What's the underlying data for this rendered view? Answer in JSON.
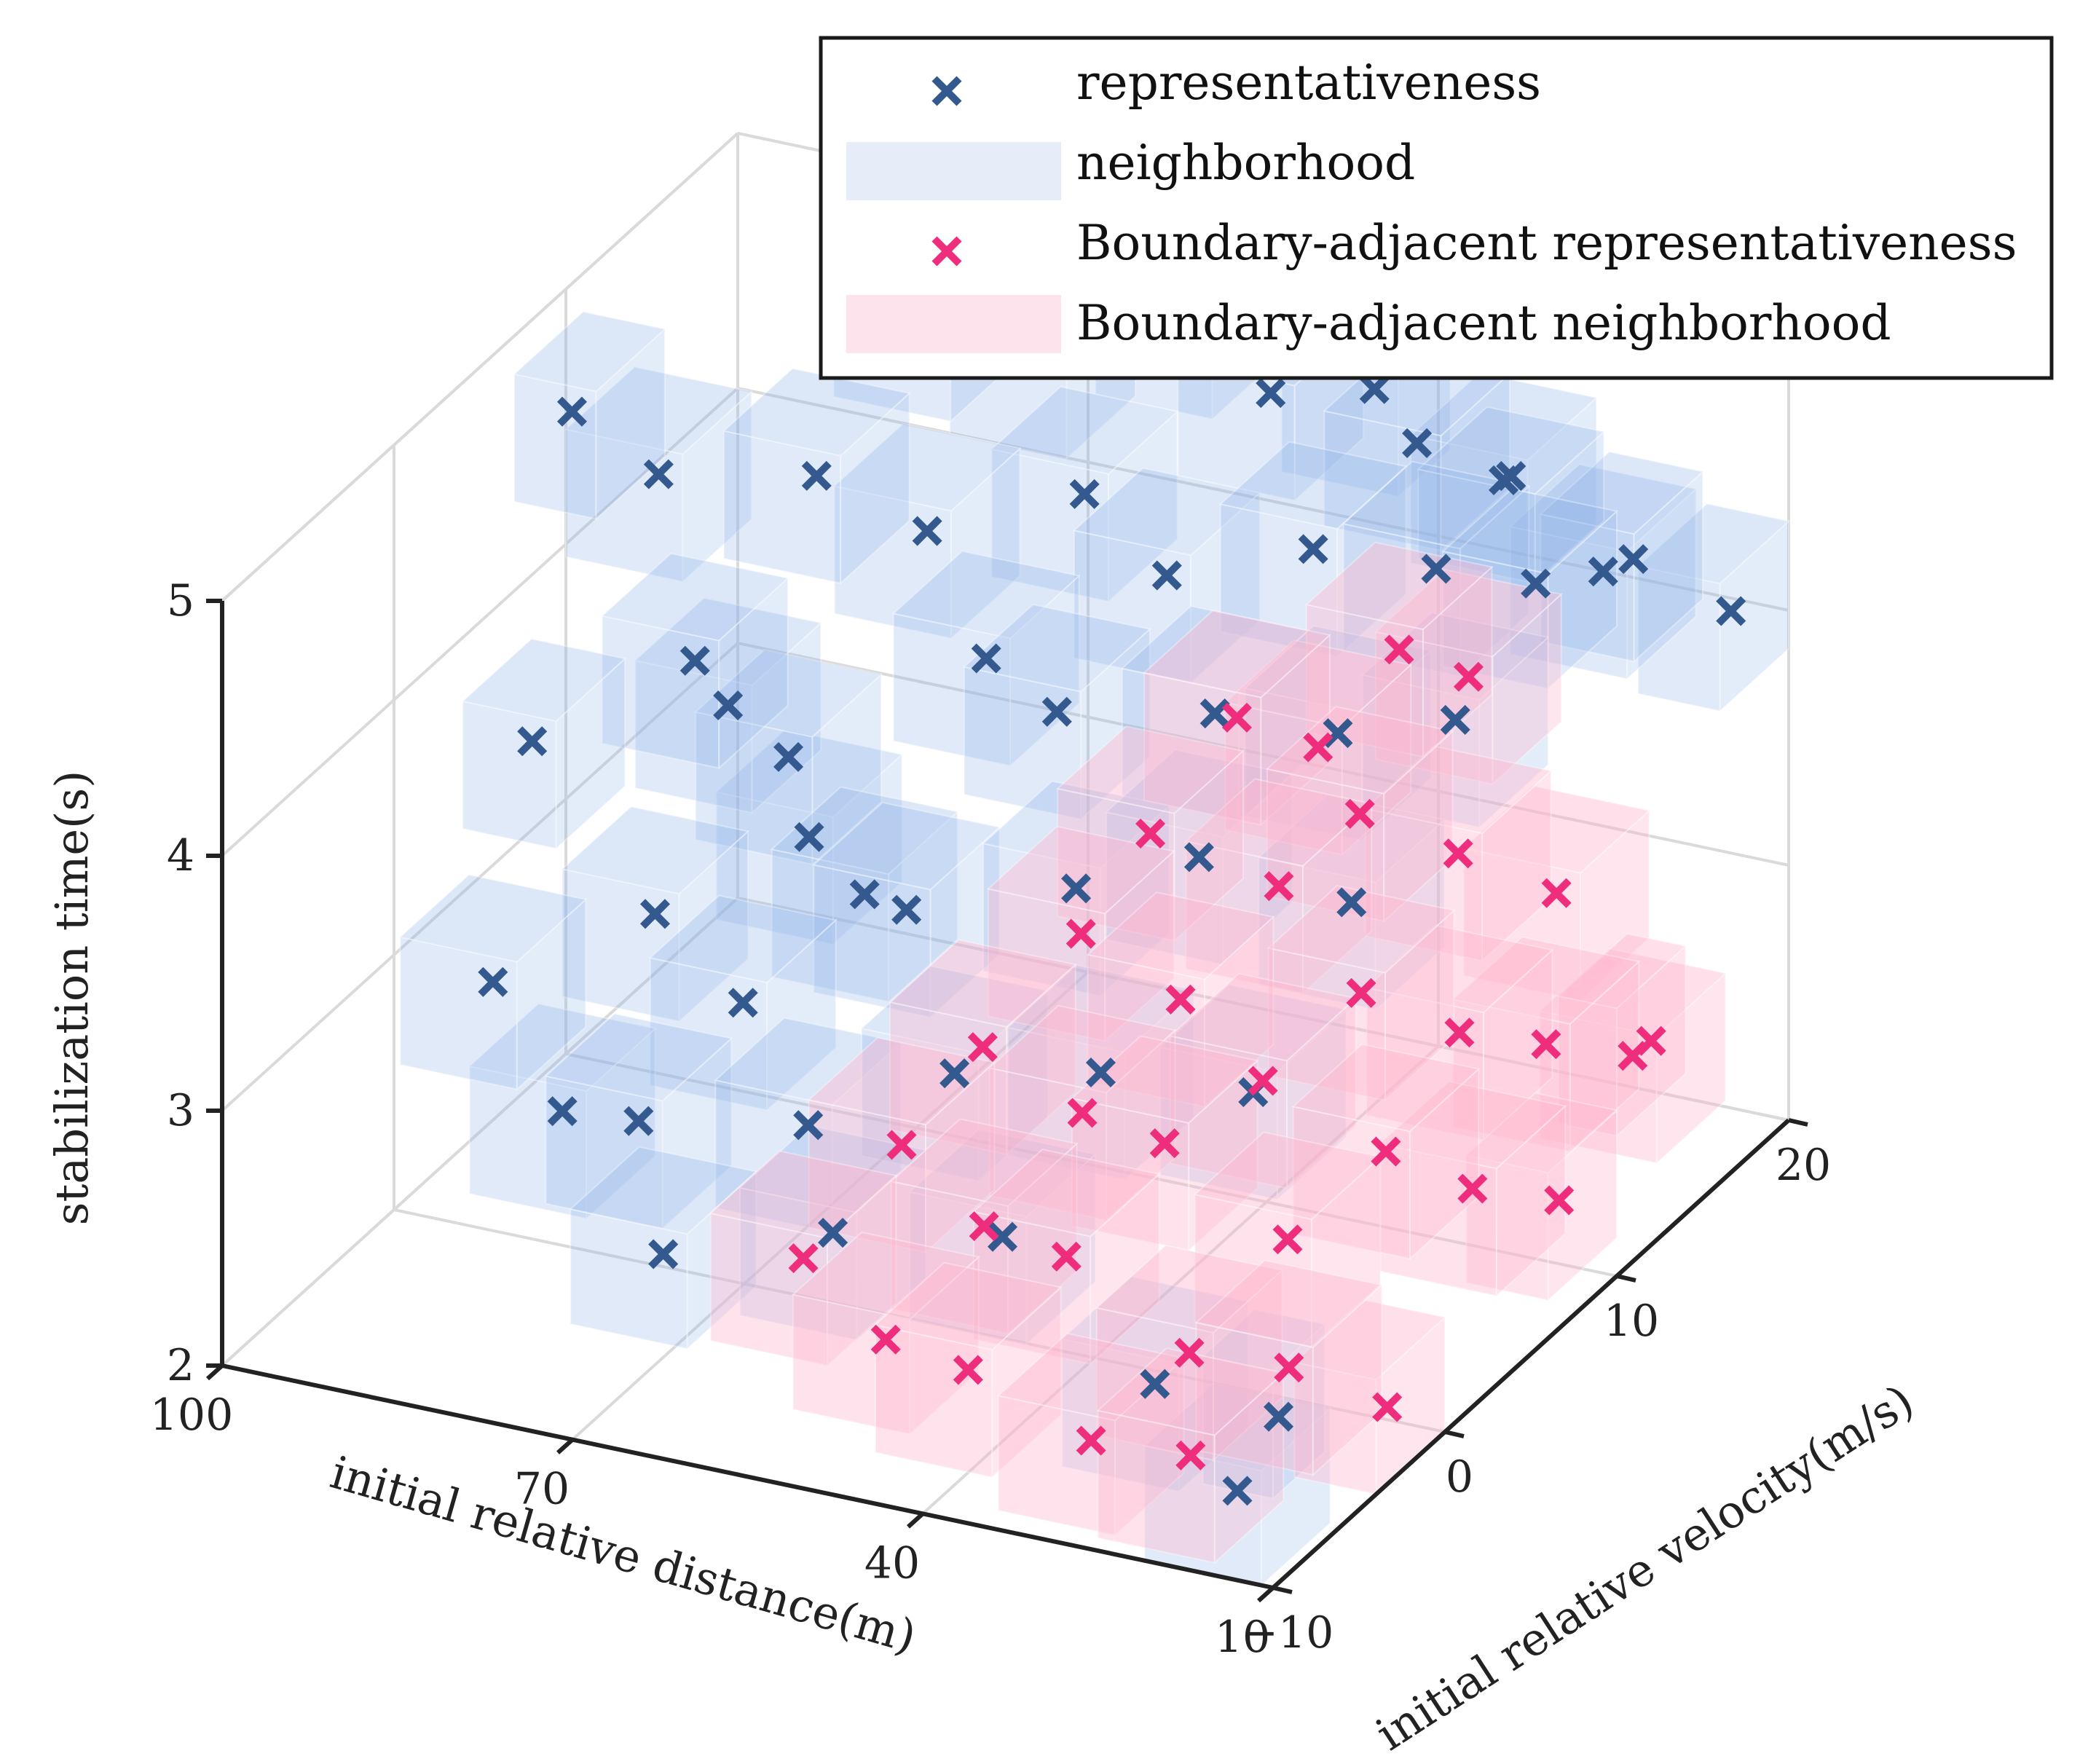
{
  "colors": {
    "representative": "#33598f",
    "neighborhood": "#8fb3e8",
    "neighborhood_legend": "#e6edf8",
    "boundary_representative": "#ee2e7c",
    "boundary_neighborhood": "#ffb6cc",
    "boundary_neighborhood_legend": "#fde4ec",
    "grid": "#dadada",
    "axis": "#222222"
  },
  "legend": {
    "position": "top-right",
    "items": [
      {
        "label": "representativeness",
        "kind": "marker",
        "color_key": "representative"
      },
      {
        "label": "neighborhood",
        "kind": "patch",
        "color_key": "neighborhood_legend"
      },
      {
        "label": "Boundary-adjacent representativeness",
        "kind": "marker",
        "color_key": "boundary_representative"
      },
      {
        "label": "Boundary-adjacent neighborhood",
        "kind": "patch",
        "color_key": "boundary_neighborhood_legend"
      }
    ]
  },
  "chart_data": {
    "type": "scatter",
    "projection": "3d",
    "title": "",
    "xlabel": "initial relative distance(m)",
    "ylabel": "initial relative velocity(m/s)",
    "zlabel": "stabilization time(s)",
    "xlim": [
      10,
      100
    ],
    "ylim": [
      -10,
      20
    ],
    "zlim": [
      2,
      5
    ],
    "xticks": [
      100,
      70,
      40,
      10
    ],
    "xtick_labels": [
      "100",
      "70",
      "40",
      "10"
    ],
    "yticks": [
      -10,
      0,
      10,
      20
    ],
    "ytick_labels": [
      "−10",
      "0",
      "10",
      "20"
    ],
    "zticks": [
      2,
      3,
      4,
      5
    ],
    "ztick_labels": [
      "2",
      "3",
      "4",
      "5"
    ],
    "grid": true,
    "series": [
      {
        "name": "representativeness",
        "marker": "x",
        "color_key": "representative",
        "neighborhood_half_size": [
          5,
          2,
          0.25
        ],
        "points": [
          [
            98,
            9,
            4.6
          ],
          [
            95,
            12,
            4.2
          ],
          [
            92,
            14,
            3.2
          ],
          [
            88,
            16,
            2.6
          ],
          [
            97,
            6,
            3.5
          ],
          [
            90,
            3,
            2.3
          ],
          [
            86,
            8,
            3.8
          ],
          [
            80,
            11,
            4.4
          ],
          [
            75,
            14,
            4.9
          ],
          [
            93,
            1,
            2.9
          ],
          [
            85,
            5,
            3.0
          ],
          [
            78,
            8,
            3.5
          ],
          [
            72,
            12,
            4.2
          ],
          [
            68,
            16,
            4.7
          ],
          [
            82,
            2,
            2.4
          ],
          [
            76,
            4,
            2.8
          ],
          [
            70,
            7,
            3.1
          ],
          [
            64,
            10,
            3.9
          ],
          [
            60,
            13,
            4.4
          ],
          [
            57,
            17,
            4.9
          ],
          [
            74,
            -2,
            2.2
          ],
          [
            66,
            1,
            2.6
          ],
          [
            62,
            4,
            3.3
          ],
          [
            55,
            8,
            3.9
          ],
          [
            50,
            11,
            4.3
          ],
          [
            47,
            15,
            4.8
          ],
          [
            44,
            19,
            4.6
          ],
          [
            58,
            -3,
            2.5
          ],
          [
            52,
            0,
            3.0
          ],
          [
            46,
            3,
            3.6
          ],
          [
            40,
            7,
            4.1
          ],
          [
            36,
            10,
            4.6
          ],
          [
            33,
            14,
            4.8
          ],
          [
            30,
            17,
            4.5
          ],
          [
            42,
            -4,
            2.7
          ],
          [
            38,
            -1,
            3.2
          ],
          [
            34,
            2,
            3.9
          ],
          [
            28,
            6,
            4.2
          ],
          [
            24,
            9,
            4.7
          ],
          [
            22,
            12,
            4.9
          ],
          [
            20,
            16,
            4.3
          ],
          [
            26,
            -6,
            2.4
          ],
          [
            22,
            -3,
            3.4
          ],
          [
            18,
            0,
            4.0
          ],
          [
            15,
            4,
            4.5
          ],
          [
            14,
            8,
            4.8
          ],
          [
            13,
            13,
            4.6
          ],
          [
            12,
            18,
            4.1
          ],
          [
            16,
            -8,
            2.2
          ],
          [
            11,
            -9,
            2.6
          ]
        ]
      },
      {
        "name": "Boundary-adjacent representativeness",
        "marker": "x",
        "color_key": "boundary_representative",
        "neighborhood_half_size": [
          5,
          2,
          0.25
        ],
        "points": [
          [
            62,
            -2,
            2.3
          ],
          [
            58,
            1,
            2.6
          ],
          [
            54,
            3,
            2.9
          ],
          [
            50,
            6,
            3.2
          ],
          [
            47,
            8,
            3.5
          ],
          [
            44,
            11,
            3.8
          ],
          [
            40,
            13,
            3.6
          ],
          [
            36,
            15,
            3.9
          ],
          [
            33,
            17,
            3.7
          ],
          [
            52,
            -4,
            2.2
          ],
          [
            48,
            -1,
            2.5
          ],
          [
            44,
            2,
            2.8
          ],
          [
            40,
            5,
            3.1
          ],
          [
            36,
            8,
            3.4
          ],
          [
            32,
            10,
            3.6
          ],
          [
            28,
            13,
            3.3
          ],
          [
            24,
            16,
            3.0
          ],
          [
            42,
            -6,
            2.3
          ],
          [
            38,
            -3,
            2.6
          ],
          [
            34,
            0,
            2.9
          ],
          [
            30,
            3,
            3.0
          ],
          [
            26,
            6,
            3.2
          ],
          [
            22,
            9,
            2.9
          ],
          [
            19,
            12,
            2.7
          ],
          [
            16,
            15,
            2.5
          ],
          [
            30,
            -7,
            2.2
          ],
          [
            26,
            -4,
            2.4
          ],
          [
            22,
            -1,
            2.7
          ],
          [
            18,
            2,
            2.9
          ],
          [
            15,
            5,
            2.6
          ],
          [
            12,
            8,
            2.4
          ],
          [
            10,
            12,
            2.8
          ],
          [
            20,
            -8,
            2.3
          ],
          [
            16,
            -5,
            2.5
          ],
          [
            12,
            -2,
            2.2
          ]
        ]
      },
      {
        "name": "neighborhood",
        "marker": "box",
        "color_key": "neighborhood",
        "note": "translucent cuboid centered on each representativeness point"
      },
      {
        "name": "Boundary-adjacent neighborhood",
        "marker": "box",
        "color_key": "boundary_neighborhood",
        "note": "translucent cuboid centered on each boundary-adjacent representativeness point"
      }
    ]
  }
}
